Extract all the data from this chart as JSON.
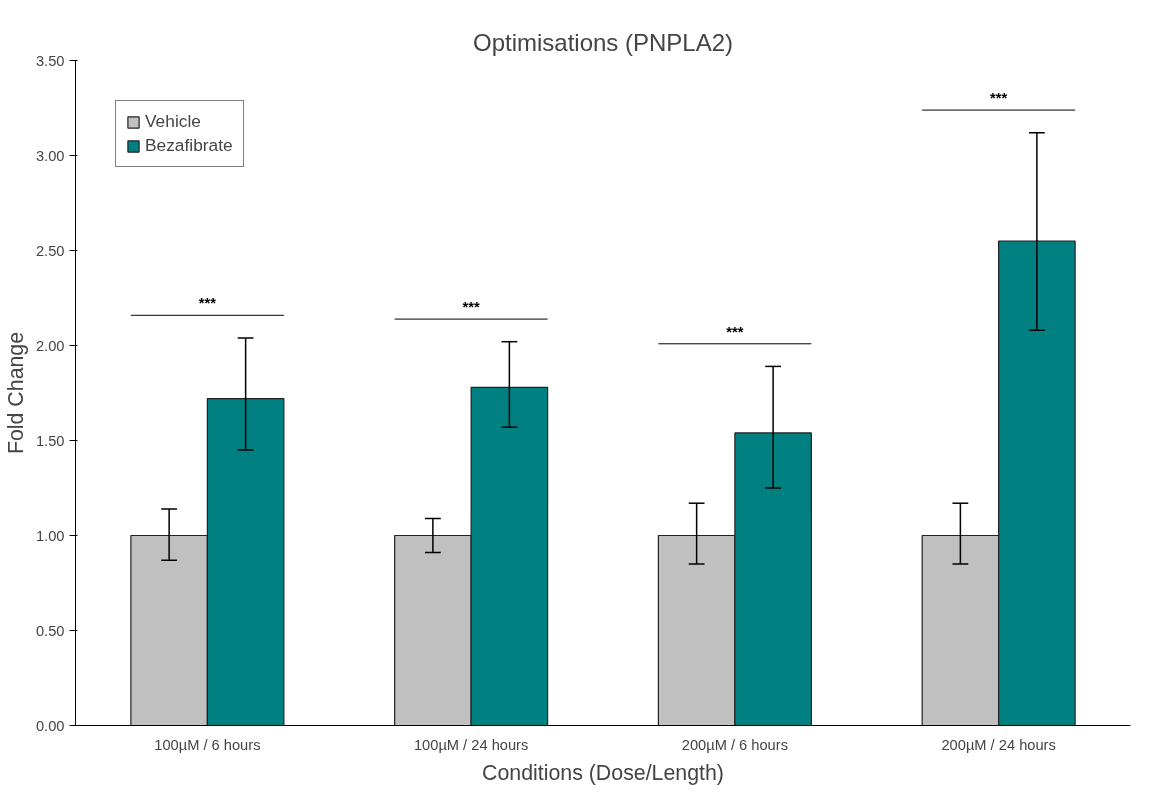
{
  "chart_data": {
    "type": "bar",
    "title": "Optimisations (PNPLA2)",
    "xlabel": "Conditions (Dose/Length)",
    "ylabel": "Fold Change",
    "categories": [
      "100µM / 6 hours",
      "100µM / 24 hours",
      "200µM / 6 hours",
      "200µM / 24 hours"
    ],
    "series": [
      {
        "name": "Vehicle",
        "color": "#c0c0c0",
        "values": [
          1.0,
          1.0,
          1.0,
          1.0
        ],
        "errors": [
          [
            0.87,
            1.14
          ],
          [
            0.91,
            1.09
          ],
          [
            0.85,
            1.17
          ],
          [
            0.85,
            1.17
          ]
        ]
      },
      {
        "name": "Bezafibrate",
        "color": "#008080",
        "values": [
          1.72,
          1.78,
          1.54,
          2.55
        ],
        "errors": [
          [
            1.45,
            2.04
          ],
          [
            1.57,
            2.02
          ],
          [
            1.25,
            1.89
          ],
          [
            2.08,
            3.12
          ]
        ]
      }
    ],
    "ylim": [
      0,
      3.5
    ],
    "yticks": [
      {
        "value": 0,
        "label": "0.00"
      },
      {
        "value": 0.5,
        "label": "0.50"
      },
      {
        "value": 1,
        "label": "1.00"
      },
      {
        "value": 1.5,
        "label": "1.50"
      },
      {
        "value": 2,
        "label": "2.00"
      },
      {
        "value": 2.5,
        "label": "2.50"
      },
      {
        "value": 3,
        "label": "3.00"
      },
      {
        "value": 3.5,
        "label": "3.50"
      }
    ],
    "annotations": [
      "***",
      "***",
      "***",
      "***"
    ],
    "grid": false,
    "legend": "top left"
  }
}
